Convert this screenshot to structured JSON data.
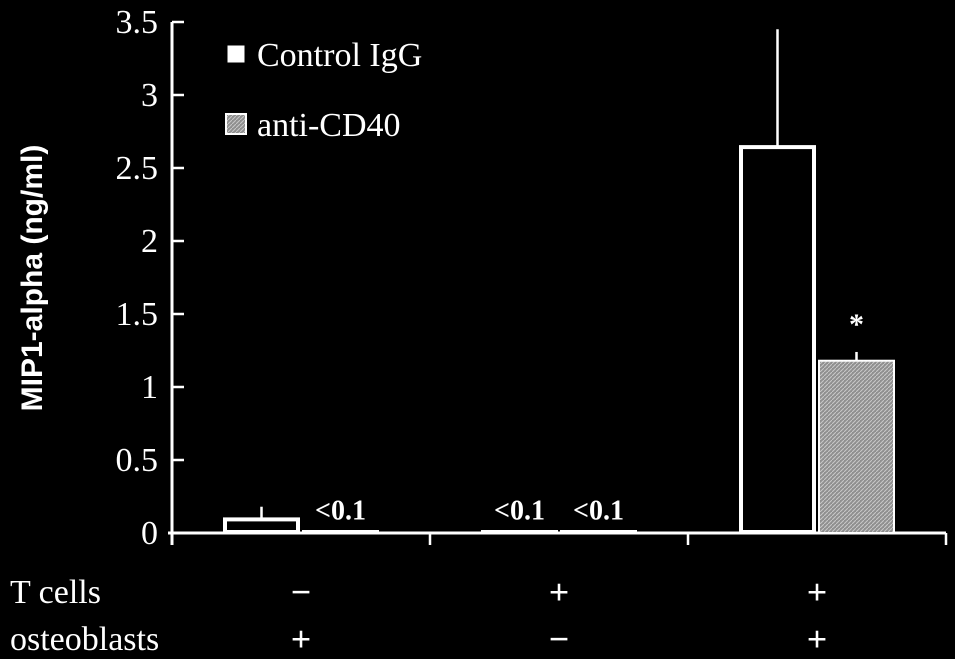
{
  "chart_data": {
    "type": "bar",
    "ylabel": "MIP1-alpha (ng/ml)",
    "ylim": [
      0,
      3.5
    ],
    "yticks": [
      0,
      0.5,
      1,
      1.5,
      2,
      2.5,
      3,
      3.5
    ],
    "ytick_labels": [
      "0",
      "0.5",
      "1",
      "1.5",
      "2",
      "2.5",
      "3",
      "3.5"
    ],
    "groups": [
      {
        "t_cells": "−",
        "osteoblasts": "+"
      },
      {
        "t_cells": "+",
        "osteoblasts": "−"
      },
      {
        "t_cells": "+",
        "osteoblasts": "+"
      }
    ],
    "row_labels": {
      "t_cells": "T cells",
      "osteoblasts": "osteoblasts"
    },
    "series": [
      {
        "name": "Control IgG",
        "color": "#ffffff",
        "values": [
          0.1,
          0.01,
          2.65
        ],
        "errors": [
          0.08,
          0,
          0.8
        ]
      },
      {
        "name": "anti-CD40",
        "color": "#9a9a9a",
        "values": [
          0.01,
          0.01,
          1.18
        ],
        "errors": [
          0,
          0,
          0.06
        ]
      }
    ],
    "bar_labels": [
      {
        "group": 0,
        "series": 1,
        "text": "<0.1"
      },
      {
        "group": 1,
        "series": 0,
        "text": "<0.1"
      },
      {
        "group": 1,
        "series": 1,
        "text": "<0.1"
      },
      {
        "group": 2,
        "series": 1,
        "text": "*"
      }
    ],
    "legend": {
      "position": "top-left"
    }
  }
}
